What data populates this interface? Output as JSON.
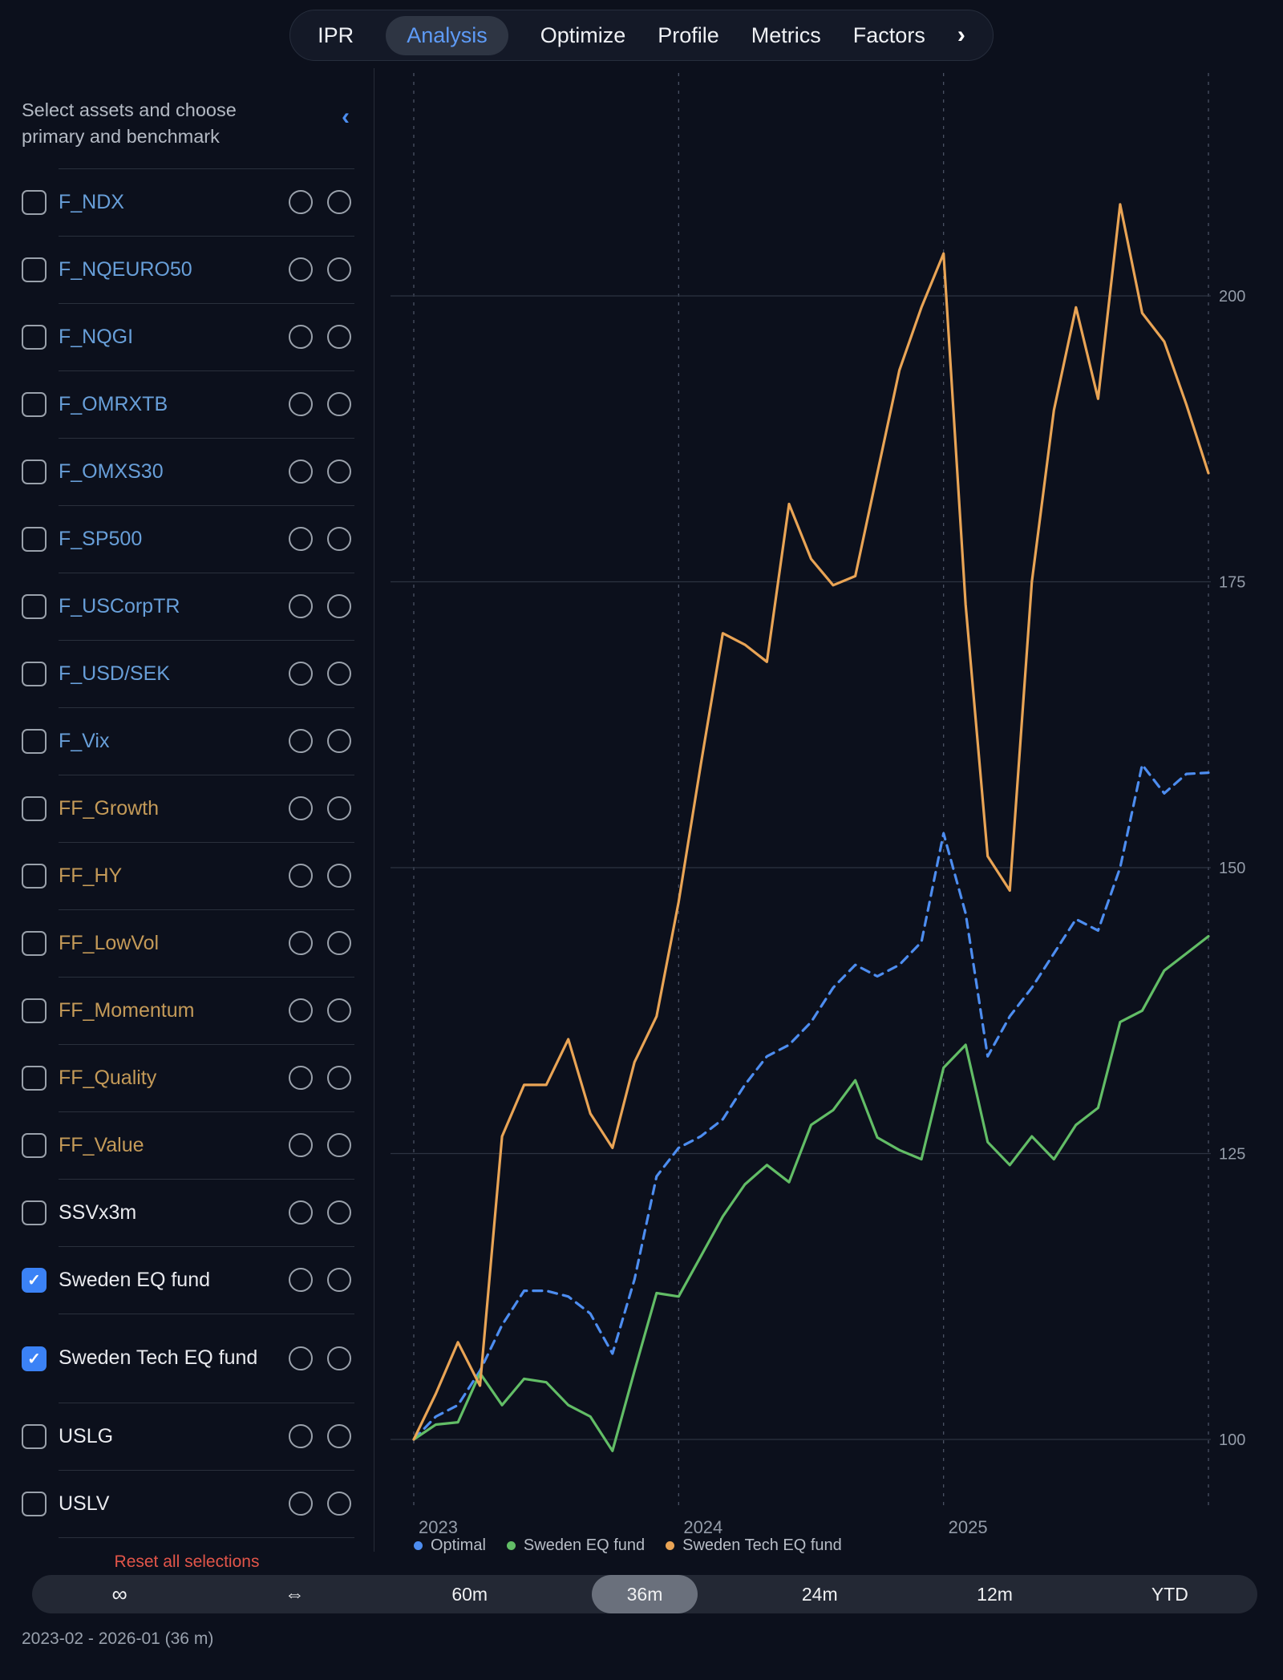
{
  "nav": {
    "items": [
      {
        "label": "IPR",
        "active": false
      },
      {
        "label": "Analysis",
        "active": true
      },
      {
        "label": "Optimize",
        "active": false
      },
      {
        "label": "Profile",
        "active": false
      },
      {
        "label": "Metrics",
        "active": false
      },
      {
        "label": "Factors",
        "active": false
      }
    ],
    "more_chevron": "›"
  },
  "sidebar": {
    "header": "Select assets and choose primary and benchmark",
    "collapse_icon": "‹",
    "items": [
      {
        "label": "F_NDX",
        "tone": "blue",
        "checked": false
      },
      {
        "label": "F_NQEURO50",
        "tone": "blue",
        "checked": false
      },
      {
        "label": "F_NQGI",
        "tone": "blue",
        "checked": false
      },
      {
        "label": "F_OMRXTB",
        "tone": "blue",
        "checked": false
      },
      {
        "label": "F_OMXS30",
        "tone": "blue",
        "checked": false
      },
      {
        "label": "F_SP500",
        "tone": "blue",
        "checked": false
      },
      {
        "label": "F_USCorpTR",
        "tone": "blue",
        "checked": false
      },
      {
        "label": "F_USD/SEK",
        "tone": "blue",
        "checked": false
      },
      {
        "label": "F_Vix",
        "tone": "blue",
        "checked": false
      },
      {
        "label": "FF_Growth",
        "tone": "gold",
        "checked": false
      },
      {
        "label": "FF_HY",
        "tone": "gold",
        "checked": false
      },
      {
        "label": "FF_LowVol",
        "tone": "gold",
        "checked": false
      },
      {
        "label": "FF_Momentum",
        "tone": "gold",
        "checked": false
      },
      {
        "label": "FF_Quality",
        "tone": "gold",
        "checked": false
      },
      {
        "label": "FF_Value",
        "tone": "gold",
        "checked": false
      },
      {
        "label": "SSVx3m",
        "tone": "plain",
        "checked": false
      },
      {
        "label": "Sweden EQ fund",
        "tone": "plain",
        "checked": true
      },
      {
        "label": "Sweden Tech EQ fund",
        "tone": "plain",
        "checked": true,
        "twoline": true
      },
      {
        "label": "USLG",
        "tone": "plain",
        "checked": false
      },
      {
        "label": "USLV",
        "tone": "plain",
        "checked": false
      }
    ],
    "reset_label": "Reset all selections"
  },
  "chart_data": {
    "type": "line",
    "title": "",
    "xlabel": "",
    "ylabel": "",
    "x_tick_labels": [
      "2023",
      "2024",
      "2025"
    ],
    "x_gridline_indices": [
      0,
      12,
      24,
      36
    ],
    "x_label_indices": [
      0,
      12,
      24
    ],
    "yticks": [
      100,
      125,
      150,
      175,
      200
    ],
    "ylim": [
      95,
      213
    ],
    "grid": "horizontal solid, vertical dashed at year boundaries",
    "legend_position": "bottom-left",
    "x": [
      "2023-01",
      "2023-02",
      "2023-03",
      "2023-04",
      "2023-05",
      "2023-06",
      "2023-07",
      "2023-08",
      "2023-09",
      "2023-10",
      "2023-11",
      "2023-12",
      "2024-01",
      "2024-02",
      "2024-03",
      "2024-04",
      "2024-05",
      "2024-06",
      "2024-07",
      "2024-08",
      "2024-09",
      "2024-10",
      "2024-11",
      "2024-12",
      "2025-01",
      "2025-02",
      "2025-03",
      "2025-04",
      "2025-05",
      "2025-06",
      "2025-07",
      "2025-08",
      "2025-09",
      "2025-10",
      "2025-11",
      "2025-12",
      "2026-01"
    ],
    "series": [
      {
        "name": "Optimal",
        "color": "#4d8df0",
        "style": "dashed",
        "values": [
          100,
          102,
          103,
          106,
          110,
          113,
          113,
          112.5,
          111,
          107.5,
          114,
          123,
          125.5,
          126.5,
          128,
          131,
          133.5,
          134.5,
          136.5,
          139.5,
          141.5,
          140.5,
          141.5,
          143.5,
          153,
          146,
          133.5,
          137,
          139.5,
          142.5,
          145.5,
          144.5,
          150,
          159,
          156.5,
          158.2,
          158.3
        ]
      },
      {
        "name": "Sweden EQ fund",
        "color": "#62bd66",
        "style": "solid",
        "values": [
          100,
          101.3,
          101.5,
          105.8,
          103,
          105.3,
          105,
          103,
          102,
          99,
          106,
          112.8,
          112.5,
          116,
          119.5,
          122.3,
          124,
          122.5,
          127.5,
          128.8,
          131.4,
          126.4,
          125.3,
          124.5,
          132.5,
          134.5,
          126,
          124,
          126.5,
          124.5,
          127.5,
          129,
          136.5,
          137.5,
          141,
          142.5,
          144
        ]
      },
      {
        "name": "Sweden Tech EQ fund",
        "color": "#e9a455",
        "style": "solid",
        "values": [
          100,
          104,
          108.5,
          104.7,
          126.5,
          131,
          131,
          135,
          128.5,
          125.5,
          133,
          137,
          147,
          159,
          170.5,
          169.5,
          168,
          181.8,
          177,
          174.7,
          175.5,
          184.5,
          193.5,
          199,
          203.7,
          173,
          151,
          148,
          175,
          190,
          199,
          191,
          208,
          198.5,
          196,
          190.5,
          184.5
        ]
      }
    ]
  },
  "range_bar": {
    "options": [
      "∞",
      "⇔",
      "60m",
      "36m",
      "24m",
      "12m",
      "YTD"
    ],
    "selected": "36m"
  },
  "footer": {
    "period": "2023-02 - 2026-01 (36 m)"
  },
  "colors": {
    "background": "#0c101c",
    "accent_blue": "#4c8df0",
    "asset_blue": "#689fd9",
    "asset_gold": "#c49a58",
    "asset_plain": "#e9eaee",
    "checkbox_checked": "#3b82f6",
    "reset_red": "#e25549",
    "grid_line": "#2c3341",
    "grid_dash": "#4a5264",
    "tick_text": "#949ca9",
    "series_optimal": "#4d8df0",
    "series_sweden_eq": "#62bd66",
    "series_sweden_tech": "#e9a455"
  }
}
